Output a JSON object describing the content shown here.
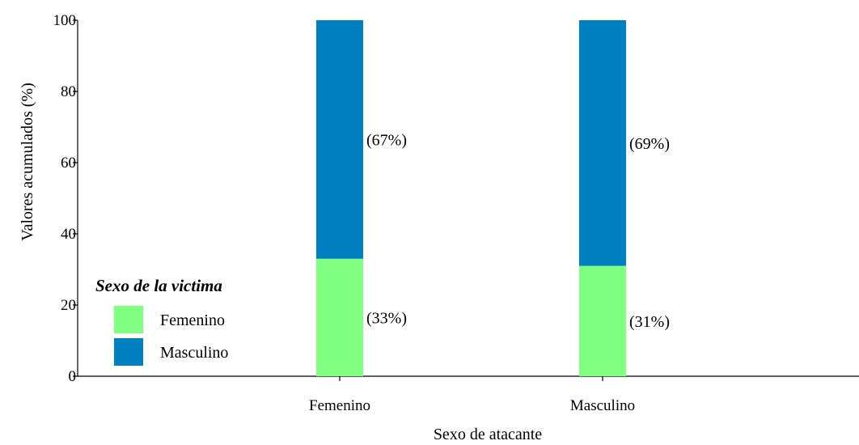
{
  "chart_data": {
    "type": "bar",
    "stacked": true,
    "title": "",
    "xlabel": "Sexo de atacante",
    "ylabel": "Valores acumulados (%)",
    "ylim": [
      0,
      100
    ],
    "yticks": [
      0,
      20,
      40,
      60,
      80,
      100
    ],
    "categories": [
      "Femenino",
      "Masculino"
    ],
    "series": [
      {
        "name": "Femenino",
        "values": [
          33,
          31
        ],
        "labels": [
          "(33%)",
          "(31%)"
        ],
        "color": "#80ff80"
      },
      {
        "name": "Masculino",
        "values": [
          67,
          69
        ],
        "labels": [
          "(67%)",
          "(69%)"
        ],
        "color": "#0080c0"
      }
    ],
    "legend": {
      "title": "Sexo de la victima",
      "placement": "bottom-left"
    },
    "grid": false
  }
}
